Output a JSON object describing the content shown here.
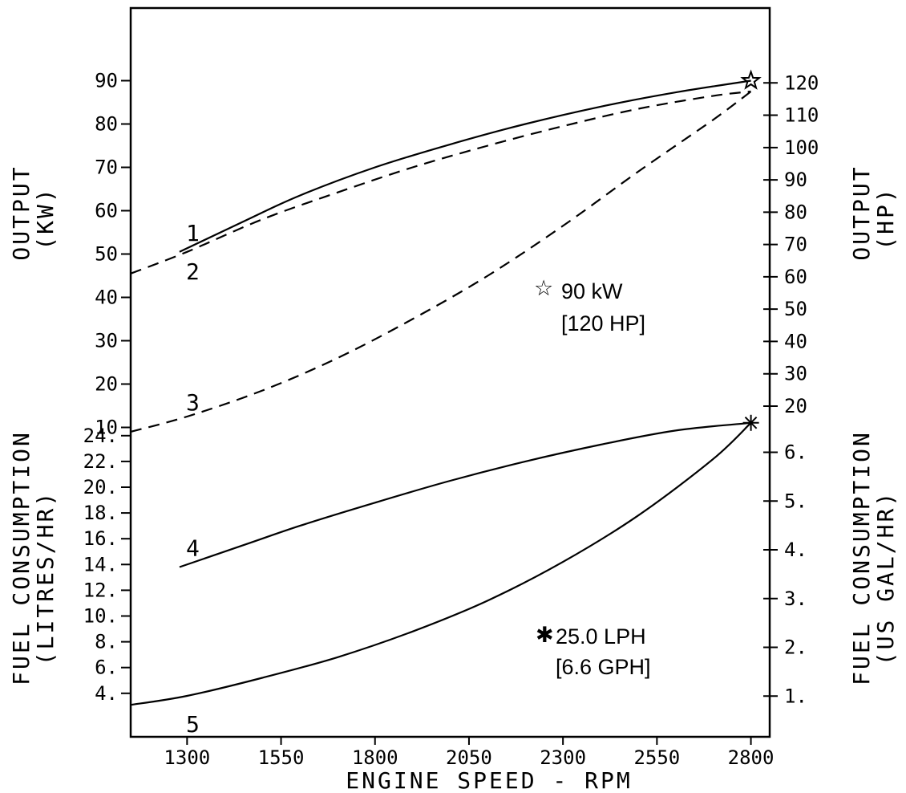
{
  "chart_data": {
    "type": "line",
    "x_axis": {
      "label": "ENGINE SPEED - RPM",
      "range": [
        1150,
        2850
      ],
      "ticks": [
        "1300",
        "1550",
        "1800",
        "2050",
        "2300",
        "2550",
        "2800"
      ]
    },
    "output_panel": {
      "left_axis": {
        "label_line1": "OUTPUT",
        "label_line2": "(KW)",
        "range": [
          8,
          93
        ],
        "ticks": [
          "10",
          "20",
          "30",
          "40",
          "50",
          "60",
          "70",
          "80",
          "90"
        ]
      },
      "right_axis": {
        "label_line1": "OUTPUT",
        "label_line2": "(HP)",
        "ticks": [
          "20",
          "30",
          "40",
          "50",
          "60",
          "70",
          "80",
          "90",
          "100",
          "110",
          "120"
        ]
      },
      "series": [
        {
          "name": "1",
          "style": "solid",
          "x": [
            1280,
            1450,
            1600,
            1800,
            2000,
            2200,
            2400,
            2600,
            2800
          ],
          "y": [
            50.5,
            57.5,
            63.5,
            70,
            75.3,
            80,
            84,
            87.3,
            90
          ]
        },
        {
          "name": "2",
          "style": "dashed",
          "x": [
            1150,
            1300,
            1500,
            1700,
            1900,
            2100,
            2300,
            2500,
            2700,
            2800
          ],
          "y": [
            45.5,
            50.5,
            58,
            64.2,
            70,
            75,
            79.5,
            83.5,
            86.5,
            87.5
          ]
        },
        {
          "name": "3",
          "style": "dashed",
          "x": [
            1150,
            1300,
            1500,
            1700,
            1900,
            2100,
            2300,
            2500,
            2700,
            2800
          ],
          "y": [
            9,
            12.5,
            18.5,
            26,
            35,
            45,
            56.5,
            69,
            81,
            87.5
          ]
        }
      ],
      "curve_labels": [
        "1",
        "2",
        "3"
      ],
      "annotation": {
        "symbol": "☆",
        "line1": "90 kW",
        "line2": "[120 HP]",
        "x": 2800,
        "y": 90
      }
    },
    "fuel_panel": {
      "left_axis": {
        "label_line1": "FUEL CONSUMPTION",
        "label_line2": "(LITRES/HR)",
        "range": [
          0,
          27
        ],
        "ticks": [
          "4.",
          "6.",
          "8.",
          "10.",
          "12.",
          "14.",
          "16.",
          "18.",
          "20.",
          "22.",
          "24."
        ]
      },
      "right_axis": {
        "label_line1": "FUEL CONSUMPTION",
        "label_line2": "(US GAL/HR)",
        "ticks": [
          "1.",
          "2.",
          "3.",
          "4.",
          "5.",
          "6."
        ]
      },
      "series": [
        {
          "name": "4",
          "style": "solid",
          "x": [
            1280,
            1450,
            1600,
            1800,
            2000,
            2200,
            2400,
            2600,
            2800
          ],
          "y": [
            13.8,
            15.5,
            17,
            18.8,
            20.5,
            22,
            23.3,
            24.4,
            25
          ]
        },
        {
          "name": "5",
          "style": "solid",
          "x": [
            1150,
            1300,
            1500,
            1700,
            1900,
            2100,
            2300,
            2500,
            2700,
            2800
          ],
          "y": [
            3.1,
            3.8,
            5.2,
            6.8,
            8.8,
            11.2,
            14.2,
            17.8,
            22.2,
            25
          ]
        }
      ],
      "curve_labels": [
        "4",
        "5"
      ],
      "annotation": {
        "symbol": "✱",
        "line1": "25.0 LPH",
        "line2": "[6.6 GPH]",
        "x": 2800,
        "y": 25
      }
    }
  }
}
